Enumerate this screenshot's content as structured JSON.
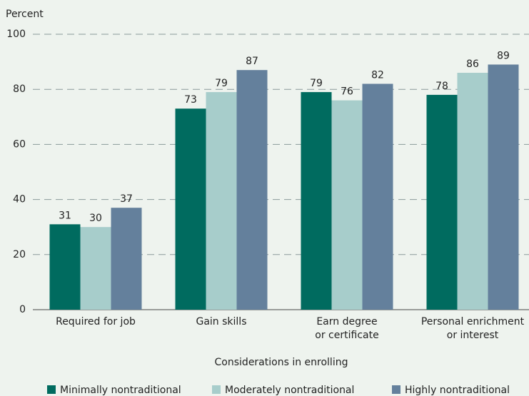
{
  "chart_data": {
    "type": "bar",
    "y_label": "Percent",
    "x_label": "Considerations in enrolling",
    "categories": [
      "Required for job",
      "Gain skills",
      "Earn degree\nor certificate",
      "Personal enrichment\nor interest"
    ],
    "series": [
      {
        "name": "Minimally nontraditional",
        "color": "#006b5f",
        "values": [
          31,
          73,
          79,
          78
        ]
      },
      {
        "name": "Moderately nontraditional",
        "color": "#a7cdcb",
        "values": [
          30,
          79,
          76,
          86
        ]
      },
      {
        "name": "Highly nontraditional",
        "color": "#64809c",
        "values": [
          37,
          87,
          82,
          89
        ]
      }
    ],
    "ylim": [
      0,
      100
    ],
    "yticks": [
      0,
      20,
      40,
      60,
      80,
      100
    ],
    "grid": true,
    "legend": "bottom"
  }
}
